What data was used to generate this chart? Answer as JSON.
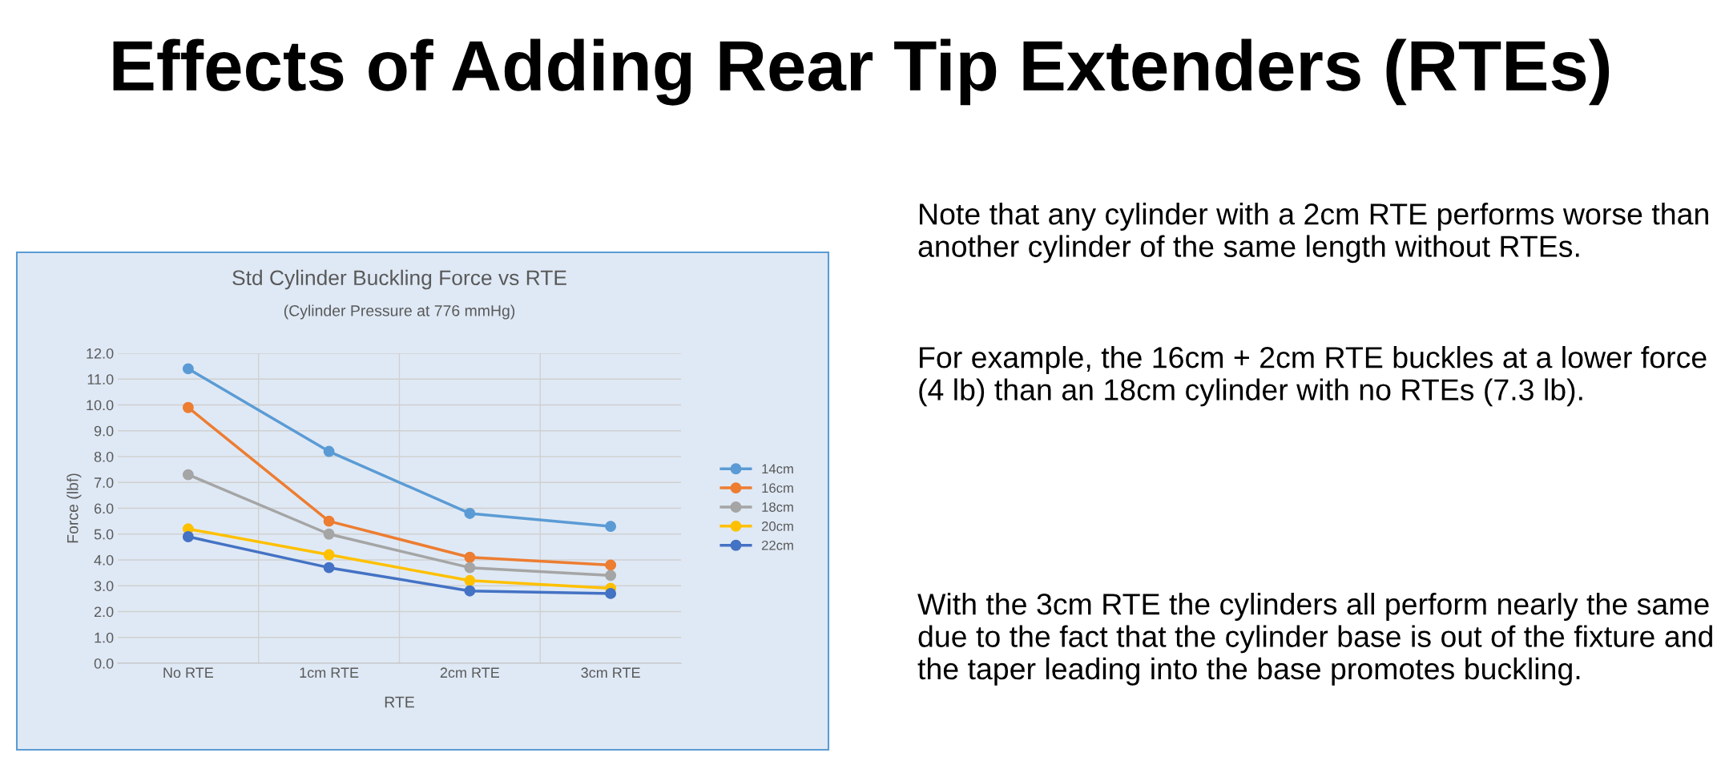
{
  "chart_data": {
    "type": "line",
    "title": "Std Cylinder Buckling Force vs RTE",
    "subtitle": "(Cylinder Pressure at 776 mmHg)",
    "xlabel": "RTE",
    "ylabel": "Force (lbf)",
    "categories": [
      "No RTE",
      "1cm RTE",
      "2cm RTE",
      "3cm RTE"
    ],
    "series": [
      {
        "name": "14cm",
        "color": "#5b9bd5",
        "values": [
          11.4,
          8.2,
          5.8,
          5.3
        ]
      },
      {
        "name": "16cm",
        "color": "#ed7d31",
        "values": [
          9.9,
          5.5,
          4.1,
          3.8
        ]
      },
      {
        "name": "18cm",
        "color": "#a5a5a5",
        "values": [
          7.3,
          5.0,
          3.7,
          3.4
        ]
      },
      {
        "name": "20cm",
        "color": "#ffc000",
        "values": [
          5.2,
          4.2,
          3.2,
          2.9
        ]
      },
      {
        "name": "22cm",
        "color": "#4472c4",
        "values": [
          4.9,
          3.7,
          2.8,
          2.7
        ]
      }
    ],
    "ylim": [
      0,
      12
    ],
    "yticks": [
      {
        "value": 0,
        "label": "0.0"
      },
      {
        "value": 1,
        "label": "1.0"
      },
      {
        "value": 2,
        "label": "2.0"
      },
      {
        "value": 3,
        "label": "3.0"
      },
      {
        "value": 4,
        "label": "4.0"
      },
      {
        "value": 5,
        "label": "5.0"
      },
      {
        "value": 6,
        "label": "6.0"
      },
      {
        "value": 7,
        "label": "7.0"
      },
      {
        "value": 8,
        "label": "8.0"
      },
      {
        "value": 9,
        "label": "9.0"
      },
      {
        "value": 10,
        "label": "10.0"
      },
      {
        "value": 11,
        "label": "11.0"
      },
      {
        "value": 12,
        "label": "12.0"
      }
    ],
    "grid": true,
    "legend": "right",
    "marker": "circle",
    "line_style": "solid",
    "annotations": [
      "Effects of Adding Rear Tip Extenders (RTEs)",
      "Note that any cylinder with a 2cm RTE performs worse than another cylinder of the same length without RTEs.",
      "For example, the 16cm + 2cm RTE buckles at a lower force (4 lb) than an 18cm cylinder with no RTEs (7.3 lb).",
      "With the 3cm RTE the cylinders all perform nearly the same due to the fact that the cylinder base is out of the fixture and the taper leading into the base promotes buckling."
    ]
  }
}
